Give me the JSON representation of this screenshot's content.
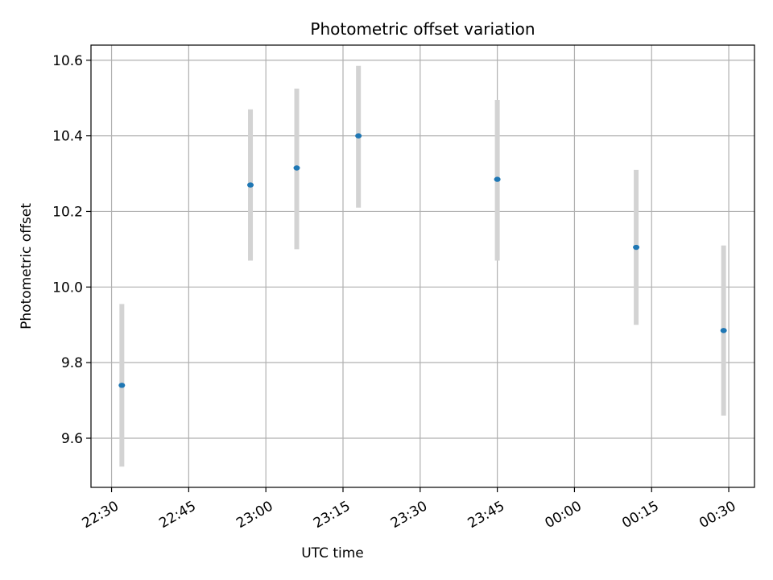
{
  "chart_data": {
    "type": "scatter",
    "title": "Photometric offset variation",
    "xlabel": "UTC time",
    "ylabel": "Photometric offset",
    "x_ticks": [
      "22:30",
      "22:45",
      "23:00",
      "23:15",
      "23:30",
      "23:45",
      "00:00",
      "00:15",
      "00:30"
    ],
    "y_ticks": [
      "9.6",
      "9.8",
      "10.0",
      "10.2",
      "10.4",
      "10.6"
    ],
    "xlim": [
      "22:26",
      "00:35"
    ],
    "ylim": [
      9.47,
      10.64
    ],
    "grid": true,
    "marker_color": "#1f77b4",
    "errorbar_color": "#d3d3d3",
    "points": [
      {
        "x": "22:32",
        "y": 9.74,
        "ylow": 9.525,
        "yhigh": 9.955
      },
      {
        "x": "22:57",
        "y": 10.27,
        "ylow": 10.07,
        "yhigh": 10.47
      },
      {
        "x": "23:06",
        "y": 10.315,
        "ylow": 10.1,
        "yhigh": 10.525
      },
      {
        "x": "23:18",
        "y": 10.4,
        "ylow": 10.21,
        "yhigh": 10.585
      },
      {
        "x": "23:45",
        "y": 10.285,
        "ylow": 10.07,
        "yhigh": 10.495
      },
      {
        "x": "00:12",
        "y": 10.105,
        "ylow": 9.9,
        "yhigh": 10.31
      },
      {
        "x": "00:29",
        "y": 9.885,
        "ylow": 9.66,
        "yhigh": 10.11
      }
    ]
  }
}
